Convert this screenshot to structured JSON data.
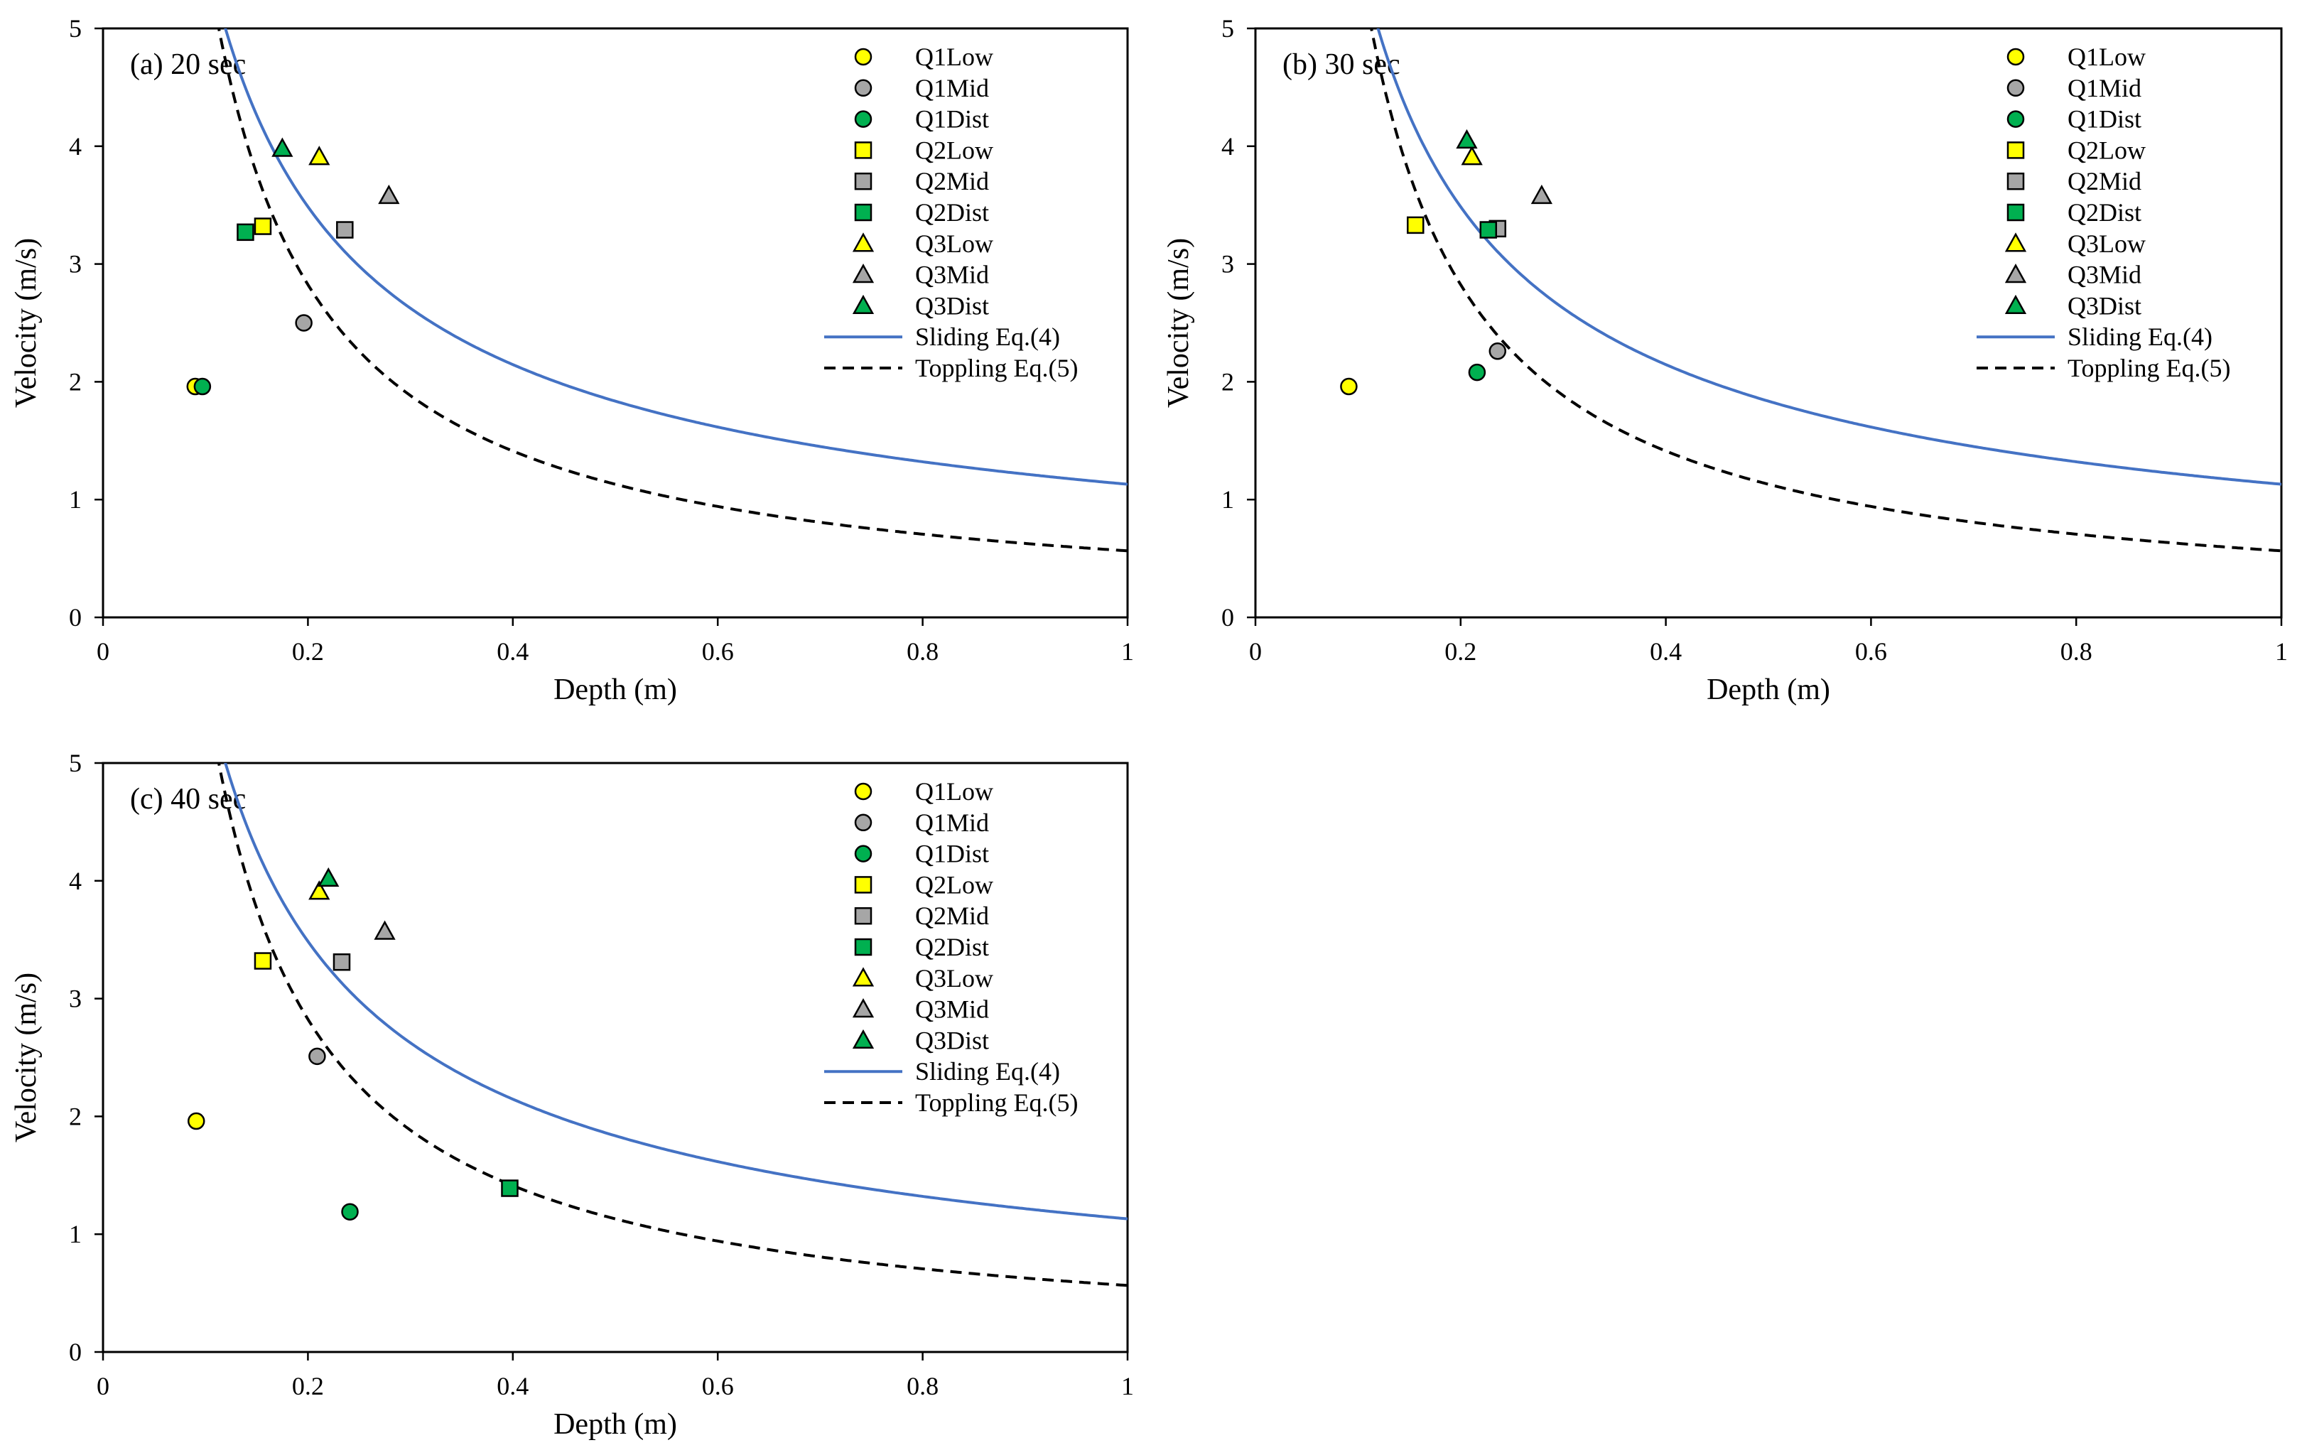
{
  "figure": {
    "description_visible": false
  },
  "styles": {
    "Low": "#ffff00",
    "Mid": "#a6a6a6",
    "Dist": "#00b050",
    "sliding_color": "#4472c4",
    "toppling_color": "#000000"
  },
  "chart_data": [
    {
      "id": "a",
      "type": "scatter",
      "title": "(a) 20 sec",
      "xlabel": "Depth (m)",
      "ylabel": "Velocity (m/s)",
      "xlim": [
        0,
        1
      ],
      "ylim": [
        0,
        5
      ],
      "xticks": [
        0,
        0.2,
        0.4,
        0.6,
        0.8,
        1
      ],
      "yticks": [
        0,
        1,
        2,
        3,
        4,
        5
      ],
      "xtick_labels": [
        "0",
        "0.2",
        "0.4",
        "0.6",
        "0.8",
        "1"
      ],
      "ytick_labels": [
        "0",
        "1",
        "2",
        "3",
        "4",
        "5"
      ],
      "legend_position": "top-right",
      "series": [
        {
          "name": "Q1Low",
          "marker": "circle",
          "group": "Low",
          "points": [
            [
              0.09,
              1.96
            ]
          ]
        },
        {
          "name": "Q1Mid",
          "marker": "circle",
          "group": "Mid",
          "points": [
            [
              0.196,
              2.5
            ]
          ]
        },
        {
          "name": "Q1Dist",
          "marker": "circle",
          "group": "Dist",
          "points": [
            [
              0.097,
              1.96
            ]
          ]
        },
        {
          "name": "Q2Low",
          "marker": "square",
          "group": "Low",
          "points": [
            [
              0.156,
              3.32
            ]
          ]
        },
        {
          "name": "Q2Mid",
          "marker": "square",
          "group": "Mid",
          "points": [
            [
              0.236,
              3.29
            ]
          ]
        },
        {
          "name": "Q2Dist",
          "marker": "square",
          "group": "Dist",
          "points": [
            [
              0.139,
              3.27
            ]
          ]
        },
        {
          "name": "Q3Low",
          "marker": "triangle",
          "group": "Low",
          "points": [
            [
              0.211,
              3.91
            ]
          ]
        },
        {
          "name": "Q3Mid",
          "marker": "triangle",
          "group": "Mid",
          "points": [
            [
              0.279,
              3.58
            ]
          ]
        },
        {
          "name": "Q3Dist",
          "marker": "triangle",
          "group": "Dist",
          "points": [
            [
              0.175,
              3.98
            ]
          ]
        }
      ],
      "lines": [
        {
          "name": "Sliding Eq.(4)",
          "style": "solid"
        },
        {
          "name": "Toppling Eq.(5)",
          "style": "dashed"
        }
      ]
    },
    {
      "id": "b",
      "type": "scatter",
      "title": "(b) 30 sec",
      "xlabel": "Depth (m)",
      "ylabel": "Velocity (m/s)",
      "xlim": [
        0,
        1
      ],
      "ylim": [
        0,
        5
      ],
      "xticks": [
        0,
        0.2,
        0.4,
        0.6,
        0.8,
        1
      ],
      "yticks": [
        0,
        1,
        2,
        3,
        4,
        5
      ],
      "xtick_labels": [
        "0",
        "0.2",
        "0.4",
        "0.6",
        "0.8",
        "1"
      ],
      "ytick_labels": [
        "0",
        "1",
        "2",
        "3",
        "4",
        "5"
      ],
      "legend_position": "top-right",
      "series": [
        {
          "name": "Q1Low",
          "marker": "circle",
          "group": "Low",
          "points": [
            [
              0.091,
              1.96
            ]
          ]
        },
        {
          "name": "Q1Mid",
          "marker": "circle",
          "group": "Mid",
          "points": [
            [
              0.236,
              2.26
            ]
          ]
        },
        {
          "name": "Q1Dist",
          "marker": "circle",
          "group": "Dist",
          "points": [
            [
              0.216,
              2.08
            ]
          ]
        },
        {
          "name": "Q2Low",
          "marker": "square",
          "group": "Low",
          "points": [
            [
              0.156,
              3.33
            ]
          ]
        },
        {
          "name": "Q2Mid",
          "marker": "square",
          "group": "Mid",
          "points": [
            [
              0.236,
              3.3
            ]
          ]
        },
        {
          "name": "Q2Dist",
          "marker": "square",
          "group": "Dist",
          "points": [
            [
              0.227,
              3.29
            ]
          ]
        },
        {
          "name": "Q3Low",
          "marker": "triangle",
          "group": "Low",
          "points": [
            [
              0.211,
              3.91
            ]
          ]
        },
        {
          "name": "Q3Mid",
          "marker": "triangle",
          "group": "Mid",
          "points": [
            [
              0.279,
              3.58
            ]
          ]
        },
        {
          "name": "Q3Dist",
          "marker": "triangle",
          "group": "Dist",
          "points": [
            [
              0.206,
              4.05
            ]
          ]
        }
      ],
      "lines": [
        {
          "name": "Sliding Eq.(4)",
          "style": "solid"
        },
        {
          "name": "Toppling Eq.(5)",
          "style": "dashed"
        }
      ]
    },
    {
      "id": "c",
      "type": "scatter",
      "title": "(c) 40 sec",
      "xlabel": "Depth (m)",
      "ylabel": "Velocity (m/s)",
      "xlim": [
        0,
        1
      ],
      "ylim": [
        0,
        5
      ],
      "xticks": [
        0,
        0.2,
        0.4,
        0.6,
        0.8,
        1
      ],
      "yticks": [
        0,
        1,
        2,
        3,
        4,
        5
      ],
      "xtick_labels": [
        "0",
        "0.2",
        "0.4",
        "0.6",
        "0.8",
        "1"
      ],
      "ytick_labels": [
        "0",
        "1",
        "2",
        "3",
        "4",
        "5"
      ],
      "legend_position": "top-right",
      "series": [
        {
          "name": "Q1Low",
          "marker": "circle",
          "group": "Low",
          "points": [
            [
              0.091,
              1.96
            ]
          ]
        },
        {
          "name": "Q1Mid",
          "marker": "circle",
          "group": "Mid",
          "points": [
            [
              0.209,
              2.51
            ]
          ]
        },
        {
          "name": "Q1Dist",
          "marker": "circle",
          "group": "Dist",
          "points": [
            [
              0.241,
              1.19
            ]
          ]
        },
        {
          "name": "Q2Low",
          "marker": "square",
          "group": "Low",
          "points": [
            [
              0.156,
              3.32
            ]
          ]
        },
        {
          "name": "Q2Mid",
          "marker": "square",
          "group": "Mid",
          "points": [
            [
              0.233,
              3.31
            ]
          ]
        },
        {
          "name": "Q2Dist",
          "marker": "square",
          "group": "Dist",
          "points": [
            [
              0.397,
              1.39
            ]
          ]
        },
        {
          "name": "Q3Low",
          "marker": "triangle",
          "group": "Low",
          "points": [
            [
              0.211,
              3.91
            ]
          ]
        },
        {
          "name": "Q3Mid",
          "marker": "triangle",
          "group": "Mid",
          "points": [
            [
              0.275,
              3.57
            ]
          ]
        },
        {
          "name": "Q3Dist",
          "marker": "triangle",
          "group": "Dist",
          "points": [
            [
              0.22,
              4.02
            ]
          ]
        }
      ],
      "lines": [
        {
          "name": "Sliding Eq.(4)",
          "style": "solid"
        },
        {
          "name": "Toppling Eq.(5)",
          "style": "dashed"
        }
      ]
    }
  ]
}
